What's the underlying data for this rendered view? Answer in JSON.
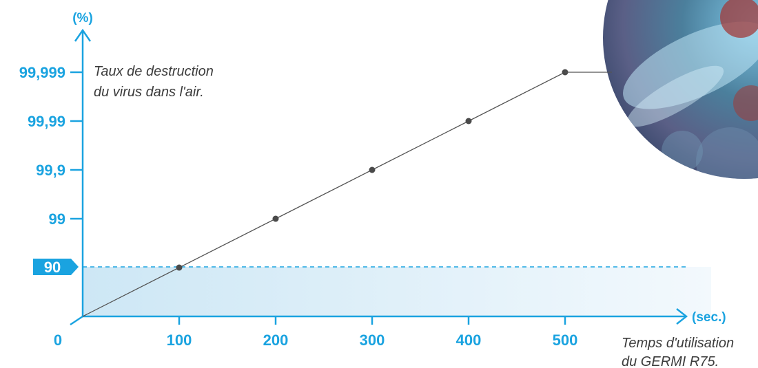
{
  "chart_data": {
    "type": "line",
    "x_unit": "(sec.)",
    "y_unit": "(%)",
    "x_origin_label": "0",
    "categories": [
      "0",
      "100",
      "200",
      "300",
      "400",
      "500"
    ],
    "y_tick_labels": [
      "99,999",
      "99,99",
      "99,9",
      "99",
      "90"
    ],
    "highlighted_y_label": "90",
    "series": [
      {
        "x": [
          0,
          100,
          200,
          300,
          400,
          500
        ],
        "y": [
          "0",
          "90",
          "99",
          "99,9",
          "99,99",
          "99,999"
        ]
      }
    ],
    "marked_points_x": [
      100,
      200,
      300,
      400,
      500
    ],
    "annotation_y": [
      "Taux de destruction",
      "du virus dans l'air."
    ],
    "annotation_x": [
      "Temps d'utilisation",
      "du GERMI R75."
    ],
    "colors": {
      "accent": "#1aa3e0",
      "line": "#555555",
      "marker": "#4a4a4a"
    }
  }
}
